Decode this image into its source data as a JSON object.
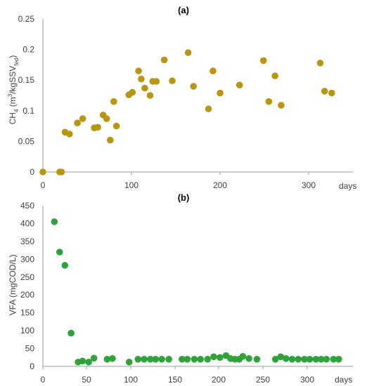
{
  "colors": {
    "ch4_marker": "#B8960F",
    "vfa_marker": "#2EA33A",
    "axis": "#9a9a9a",
    "text": "#404040"
  },
  "chart_data": [
    {
      "type": "scatter",
      "title": "(a)",
      "ylabel": "CH4 (m3/kgSSVfed)",
      "xlabel_unit": "days",
      "xlim": [
        0,
        330
      ],
      "ylim": [
        0,
        0.25
      ],
      "x_ticks": [
        "0",
        "100",
        "200",
        "300"
      ],
      "y_ticks": [
        "0",
        "0.05",
        "0.1",
        "0.15",
        "0.2",
        "0.25"
      ],
      "grid": false,
      "series": [
        {
          "color": "#B8960F",
          "points": [
            [
              0,
              0.0
            ],
            [
              19,
              0.0
            ],
            [
              21,
              0.0
            ],
            [
              25,
              0.065
            ],
            [
              30,
              0.062
            ],
            [
              39,
              0.08
            ],
            [
              45,
              0.087
            ],
            [
              58,
              0.072
            ],
            [
              62,
              0.073
            ],
            [
              68,
              0.093
            ],
            [
              72,
              0.087
            ],
            [
              76,
              0.052
            ],
            [
              80,
              0.115
            ],
            [
              83,
              0.075
            ],
            [
              97,
              0.126
            ],
            [
              101,
              0.13
            ],
            [
              108,
              0.165
            ],
            [
              111,
              0.152
            ],
            [
              115,
              0.137
            ],
            [
              121,
              0.125
            ],
            [
              124,
              0.148
            ],
            [
              128,
              0.148
            ],
            [
              137,
              0.183
            ],
            [
              146,
              0.149
            ],
            [
              164,
              0.195
            ],
            [
              170,
              0.14
            ],
            [
              187,
              0.103
            ],
            [
              192,
              0.165
            ],
            [
              200,
              0.129
            ],
            [
              222,
              0.142
            ],
            [
              249,
              0.182
            ],
            [
              255,
              0.115
            ],
            [
              262,
              0.157
            ],
            [
              269,
              0.109
            ],
            [
              313,
              0.178
            ],
            [
              318,
              0.132
            ],
            [
              326,
              0.129
            ]
          ]
        }
      ]
    },
    {
      "type": "scatter",
      "title": "(b)",
      "ylabel": "VFA (mgCOD/L)",
      "xlabel_unit": "days",
      "xlim": [
        0,
        330
      ],
      "ylim": [
        0,
        450
      ],
      "x_ticks": [
        "0",
        "50",
        "100",
        "150",
        "200",
        "250",
        "300"
      ],
      "y_ticks": [
        "0",
        "50",
        "100",
        "150",
        "200",
        "250",
        "300",
        "350",
        "400",
        "450"
      ],
      "grid": false,
      "series": [
        {
          "color": "#2EA33A",
          "points": [
            [
              13,
              405
            ],
            [
              19,
              320
            ],
            [
              25,
              283
            ],
            [
              32,
              93
            ],
            [
              40,
              12
            ],
            [
              45,
              15
            ],
            [
              52,
              12
            ],
            [
              58,
              23
            ],
            [
              73,
              20
            ],
            [
              79,
              22
            ],
            [
              98,
              12
            ],
            [
              108,
              20
            ],
            [
              115,
              20
            ],
            [
              122,
              20
            ],
            [
              128,
              20
            ],
            [
              135,
              20
            ],
            [
              143,
              20
            ],
            [
              158,
              20
            ],
            [
              164,
              20
            ],
            [
              172,
              20
            ],
            [
              179,
              20
            ],
            [
              187,
              20
            ],
            [
              194,
              27
            ],
            [
              201,
              25
            ],
            [
              208,
              30
            ],
            [
              213,
              22
            ],
            [
              218,
              20
            ],
            [
              223,
              20
            ],
            [
              227,
              28
            ],
            [
              234,
              22
            ],
            [
              243,
              20
            ],
            [
              264,
              20
            ],
            [
              270,
              27
            ],
            [
              276,
              22
            ],
            [
              283,
              20
            ],
            [
              290,
              20
            ],
            [
              297,
              20
            ],
            [
              303,
              20
            ],
            [
              310,
              20
            ],
            [
              316,
              20
            ],
            [
              322,
              20
            ],
            [
              330,
              20
            ],
            [
              336,
              20
            ]
          ]
        }
      ]
    }
  ]
}
